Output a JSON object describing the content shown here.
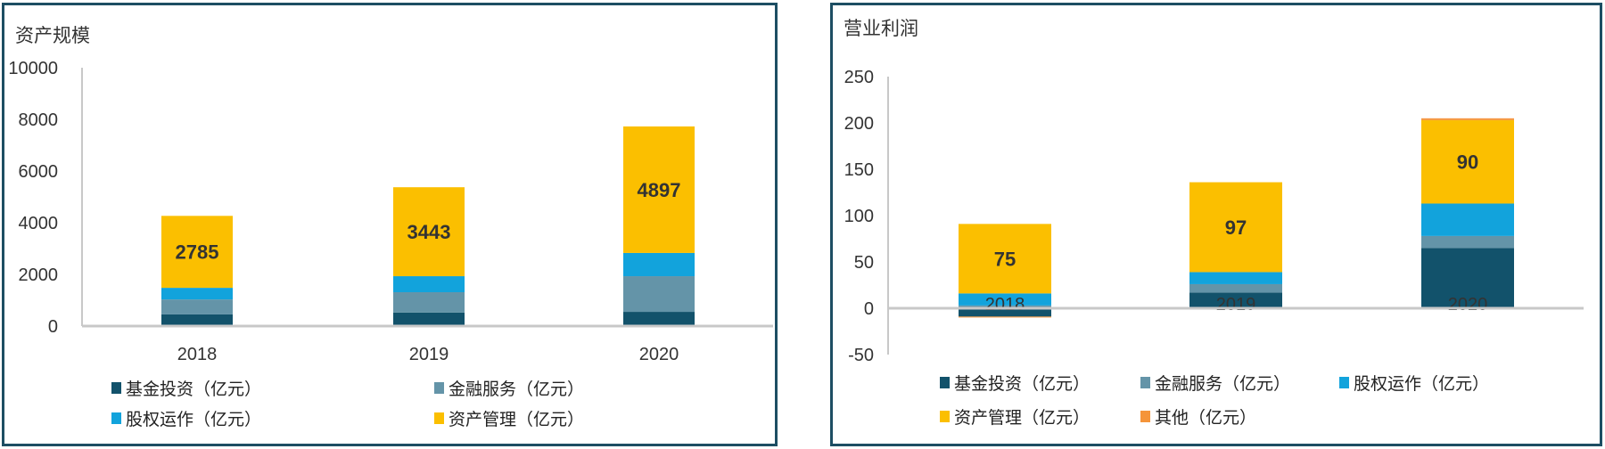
{
  "colors": {
    "border": "#1d4e63",
    "fund": "#12526b",
    "finance": "#6494a8",
    "equity": "#12a3dc",
    "asset": "#fbbf00",
    "other": "#f5943a",
    "axis": "#c8c8c8"
  },
  "chart_data": [
    {
      "type": "bar",
      "stacked": true,
      "title": "资产规模",
      "categories": [
        "2018",
        "2019",
        "2020"
      ],
      "ylim": [
        0,
        10000
      ],
      "yticks": [
        "0",
        "2000",
        "4000",
        "6000",
        "8000",
        "10000"
      ],
      "grid": false,
      "legend_position": "bottom",
      "series": [
        {
          "name": "基金投资（亿元）",
          "color_key": "fund",
          "values": [
            450,
            520,
            550
          ]
        },
        {
          "name": "金融服务（亿元）",
          "color_key": "finance",
          "values": [
            580,
            790,
            1380
          ]
        },
        {
          "name": "股权运作（亿元）",
          "color_key": "equity",
          "values": [
            450,
            620,
            900
          ]
        },
        {
          "name": "资产管理（亿元）",
          "color_key": "asset",
          "values": [
            2785,
            3443,
            4897
          ],
          "data_labels": [
            "2785",
            "3443",
            "4897"
          ]
        }
      ]
    },
    {
      "type": "bar",
      "stacked": true,
      "title": "营业利润",
      "categories": [
        "2018",
        "2019",
        "2020"
      ],
      "ylim": [
        -50,
        250
      ],
      "yticks": [
        "-50",
        "0",
        "50",
        "100",
        "150",
        "200",
        "250"
      ],
      "grid": false,
      "legend_position": "bottom",
      "series": [
        {
          "name": "基金投资（亿元）",
          "color_key": "fund",
          "values": [
            -9,
            17,
            65
          ]
        },
        {
          "name": "金融服务（亿元）",
          "color_key": "finance",
          "values": [
            3,
            9,
            13
          ]
        },
        {
          "name": "股权运作（亿元）",
          "color_key": "equity",
          "values": [
            13,
            13,
            35
          ]
        },
        {
          "name": "资产管理（亿元）",
          "color_key": "asset",
          "values": [
            75,
            97,
            90
          ],
          "data_labels": [
            "75",
            "97",
            "90"
          ]
        },
        {
          "name": "其他（亿元）",
          "color_key": "other",
          "values": [
            -1,
            0,
            2
          ]
        }
      ]
    }
  ]
}
